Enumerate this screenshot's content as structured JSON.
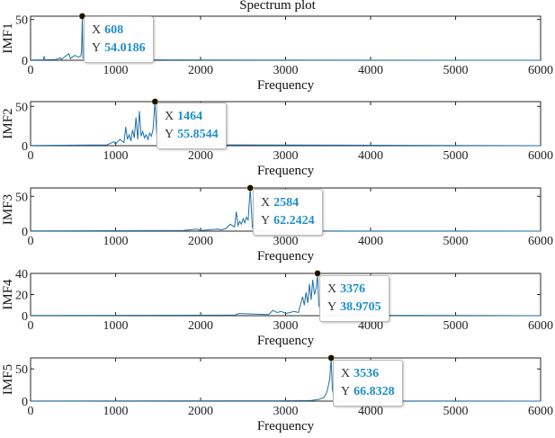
{
  "figure": {
    "title": "Spectrum plot",
    "line_color": "#1f6fa8",
    "axis_color": "#262626",
    "datatip_value_color": "#1f8fc9"
  },
  "chart_data": [
    {
      "type": "line",
      "title": "Spectrum plot",
      "ylabel": "IMF1",
      "xlabel": "Frequency",
      "xlim": [
        0,
        6000
      ],
      "ylim": [
        0,
        54
      ],
      "xticks": [
        0,
        1000,
        2000,
        3000,
        4000,
        5000,
        6000
      ],
      "yticks": [
        0,
        50
      ],
      "peak": {
        "x": 608,
        "y": 54.0186
      },
      "datatip": {
        "x_label": "X",
        "x_value": "608",
        "y_label": "Y",
        "y_value": "54.0186"
      },
      "x": [
        0,
        150,
        160,
        170,
        300,
        350,
        360,
        400,
        450,
        470,
        480,
        520,
        560,
        590,
        600,
        608,
        616,
        640,
        700,
        900,
        1500,
        2200,
        6000
      ],
      "y": [
        0.3,
        0.5,
        5,
        0.6,
        1,
        3,
        1,
        4,
        8,
        2,
        3,
        6,
        4,
        5,
        12,
        54.0186,
        3,
        1,
        0.5,
        0.3,
        0.5,
        0.2,
        0
      ]
    },
    {
      "type": "line",
      "ylabel": "IMF2",
      "xlabel": "Frequency",
      "xlim": [
        0,
        6000
      ],
      "ylim": [
        0,
        56
      ],
      "xticks": [
        0,
        1000,
        2000,
        3000,
        4000,
        5000,
        6000
      ],
      "yticks": [
        0,
        50
      ],
      "peak": {
        "x": 1464,
        "y": 55.8544
      },
      "datatip": {
        "x_label": "X",
        "x_value": "1464",
        "y_label": "Y",
        "y_value": "55.8544"
      },
      "x": [
        0,
        900,
        980,
        1000,
        1050,
        1100,
        1120,
        1140,
        1160,
        1180,
        1200,
        1220,
        1240,
        1260,
        1280,
        1300,
        1320,
        1340,
        1360,
        1380,
        1400,
        1420,
        1440,
        1464,
        1490,
        1550,
        1700,
        2400,
        6000
      ],
      "y": [
        0.2,
        1,
        5,
        2,
        8,
        4,
        24,
        8,
        14,
        6,
        20,
        10,
        36,
        8,
        44,
        12,
        18,
        10,
        14,
        8,
        16,
        12,
        20,
        55.8544,
        4,
        1,
        0.5,
        1,
        0
      ]
    },
    {
      "type": "line",
      "ylabel": "IMF3",
      "xlabel": "Frequency",
      "xlim": [
        0,
        6000
      ],
      "ylim": [
        0,
        62
      ],
      "xticks": [
        0,
        1000,
        2000,
        3000,
        4000,
        5000,
        6000
      ],
      "yticks": [
        0,
        50
      ],
      "peak": {
        "x": 2584,
        "y": 62.2424
      },
      "datatip": {
        "x_label": "X",
        "x_value": "2584",
        "y_label": "Y",
        "y_value": "62.2424"
      },
      "x": [
        0,
        1800,
        1950,
        2000,
        2200,
        2250,
        2300,
        2350,
        2400,
        2420,
        2440,
        2460,
        2480,
        2500,
        2520,
        2540,
        2560,
        2584,
        2610,
        2700,
        3000,
        6000
      ],
      "y": [
        0.2,
        1,
        3,
        1,
        3,
        2,
        4,
        10,
        6,
        28,
        8,
        14,
        10,
        18,
        12,
        20,
        16,
        62.2424,
        5,
        1,
        0.3,
        0
      ]
    },
    {
      "type": "line",
      "ylabel": "IMF4",
      "xlabel": "Frequency",
      "xlim": [
        0,
        6000
      ],
      "ylim": [
        0,
        40
      ],
      "xticks": [
        0,
        1000,
        2000,
        3000,
        4000,
        5000,
        6000
      ],
      "yticks": [
        0,
        20,
        40
      ],
      "peak": {
        "x": 3376,
        "y": 38.9705
      },
      "datatip": {
        "x_label": "X",
        "x_value": "3376",
        "y_label": "Y",
        "y_value": "38.9705"
      },
      "x": [
        0,
        2400,
        2450,
        2800,
        2850,
        2900,
        2950,
        3000,
        3050,
        3100,
        3150,
        3200,
        3220,
        3240,
        3260,
        3280,
        3300,
        3320,
        3340,
        3360,
        3376,
        3390,
        3420,
        3500,
        4000,
        6000
      ],
      "y": [
        0.2,
        0.5,
        2,
        1,
        5,
        3,
        4,
        2,
        3,
        4,
        3,
        18,
        10,
        22,
        12,
        30,
        15,
        34,
        20,
        26,
        38.9705,
        10,
        3,
        1,
        0.3,
        0
      ]
    },
    {
      "type": "line",
      "ylabel": "IMF5",
      "xlabel": "Frequency",
      "xlim": [
        0,
        6000
      ],
      "ylim": [
        0,
        67
      ],
      "xticks": [
        0,
        1000,
        2000,
        3000,
        4000,
        5000,
        6000
      ],
      "yticks": [
        0,
        50
      ],
      "peak": {
        "x": 3536,
        "y": 66.8328
      },
      "datatip": {
        "x_label": "X",
        "x_value": "3536",
        "y_label": "Y",
        "y_value": "66.8328"
      },
      "x": [
        0,
        2900,
        3300,
        3400,
        3450,
        3480,
        3500,
        3520,
        3536,
        3550,
        3570,
        3600,
        3700,
        6000
      ],
      "y": [
        0.2,
        0.5,
        1,
        3,
        6,
        12,
        22,
        35,
        66.8328,
        18,
        5,
        1,
        0.3,
        0
      ]
    }
  ]
}
